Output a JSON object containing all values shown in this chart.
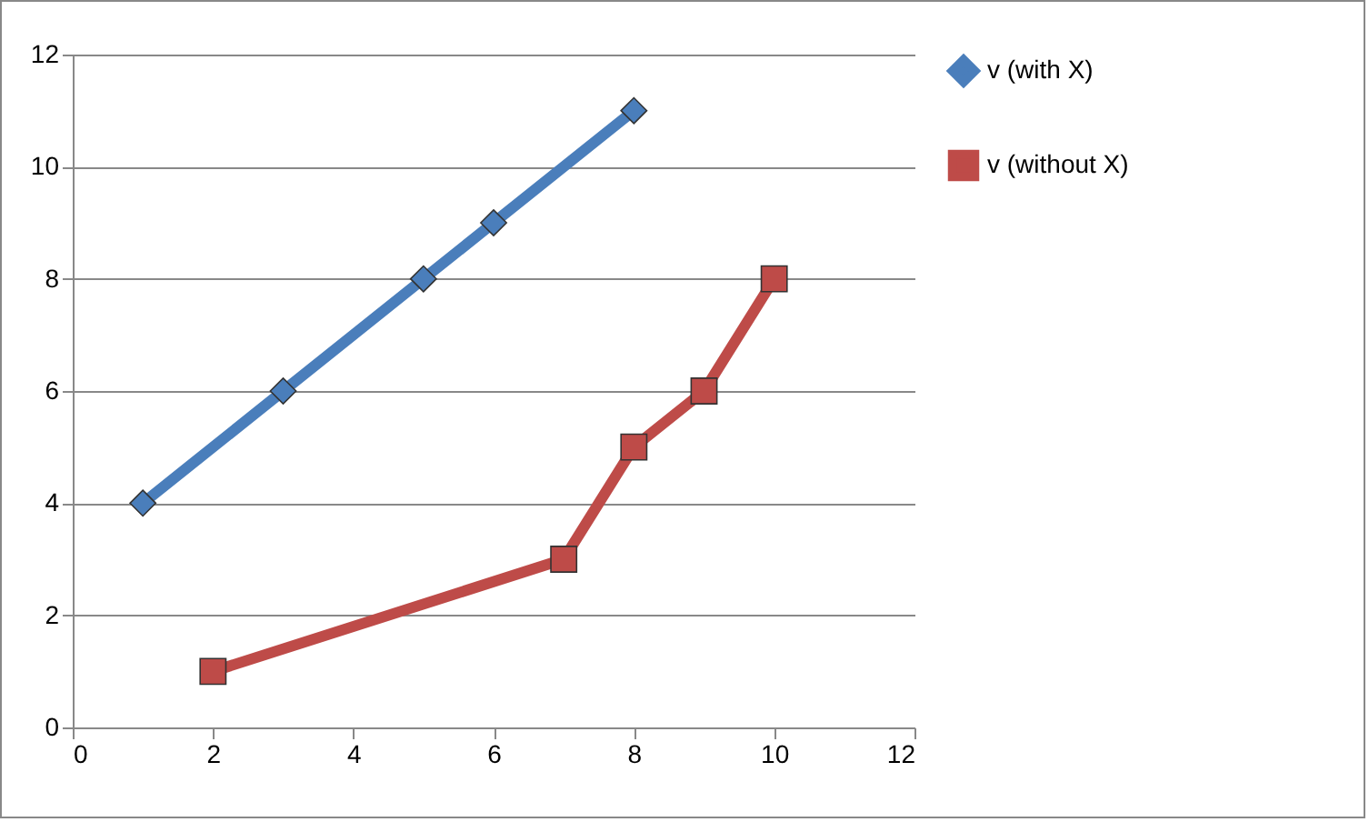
{
  "chart_data": {
    "type": "line",
    "xlim": [
      0,
      12
    ],
    "xticks": [
      0,
      2,
      4,
      6,
      8,
      10,
      12
    ],
    "ylim": [
      0,
      12
    ],
    "yticks": [
      0,
      2,
      4,
      6,
      8,
      10,
      12
    ],
    "grid": "y",
    "legend": "right",
    "series": [
      {
        "name": "v (with X)",
        "color": "#4a7ebb",
        "marker": "diamond",
        "x": [
          1,
          3,
          5,
          6,
          8
        ],
        "values": [
          4,
          6,
          8,
          9,
          11
        ]
      },
      {
        "name": "v (without X)",
        "color": "#be4b48",
        "marker": "square",
        "x": [
          2,
          7,
          8,
          9,
          10
        ],
        "values": [
          1,
          3,
          5,
          6,
          8
        ]
      }
    ]
  }
}
